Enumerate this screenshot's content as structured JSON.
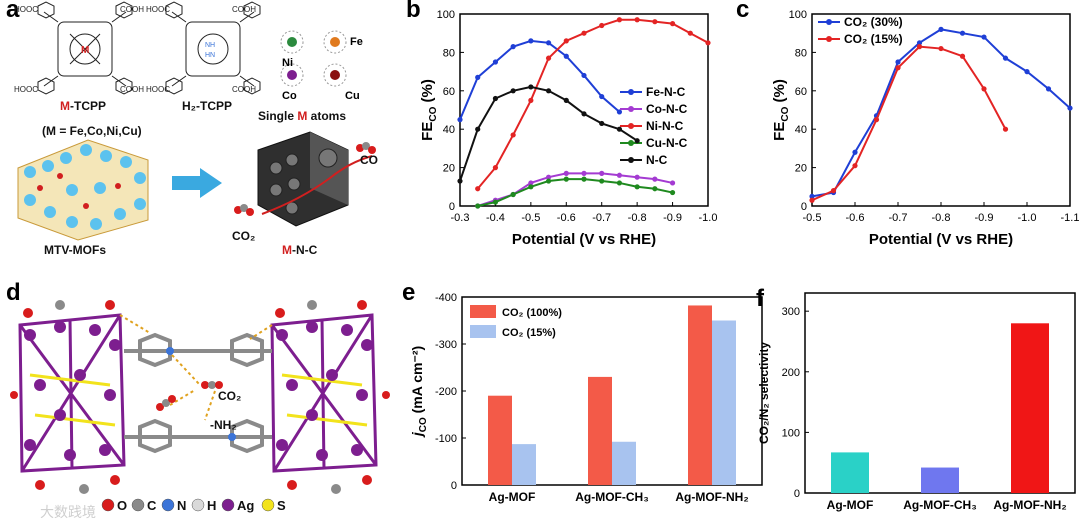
{
  "panels": {
    "a": {
      "label": "a",
      "m_tcpp_prefix": "M",
      "m_tcpp_suffix": "-TCPP",
      "h2_tcpp": "H₂-TCPP",
      "cooh": "COOH",
      "hooc": "HOOC",
      "metal_center": "M",
      "nh": "NH",
      "hn": "HN",
      "m_list": "(M = Fe,Co,Ni,Cu)",
      "single_atoms_pre": "Single ",
      "single_atoms_m": "M",
      "single_atoms_post": " atoms",
      "metals": [
        "Ni",
        "Fe",
        "Co",
        "Cu"
      ],
      "mtv_mofs": "MTV-MOFs",
      "co": "CO",
      "co2": "CO₂",
      "mnc_m": "M",
      "mnc_rest": "-N-C",
      "colors": {
        "red": "#d11f1f",
        "arrow": "#3aa9e0"
      }
    },
    "d": {
      "label": "d",
      "co2": "CO₂",
      "nh2": "-NH₂",
      "legend": [
        {
          "symbol": "O",
          "color": "#d81c1c"
        },
        {
          "symbol": "C",
          "color": "#8a8a8a"
        },
        {
          "symbol": "N",
          "color": "#3b74d8"
        },
        {
          "symbol": "H",
          "color": "#d9d9d9"
        },
        {
          "symbol": "Ag",
          "color": "#7d1e8f"
        },
        {
          "symbol": "S",
          "color": "#f2e31c"
        }
      ],
      "watermark": "大数践境"
    }
  },
  "chart_data": [
    {
      "id": "b",
      "type": "line",
      "label": "b",
      "title": "",
      "xlabel": "Potential (V vs RHE)",
      "ylabel_main": "FE",
      "ylabel_sub": "CO",
      "ylabel_unit": "(%)",
      "xlim": [
        -0.3,
        -1.0
      ],
      "ylim": [
        0,
        100
      ],
      "xticks": [
        -0.3,
        -0.4,
        -0.5,
        -0.6,
        -0.7,
        -0.8,
        -0.9,
        -1.0
      ],
      "xtick_labels": [
        "-0.3",
        "-0.4",
        "-0.5",
        "-0.6",
        "-0.7",
        "-0.8",
        "-0.9",
        "-1.0"
      ],
      "yticks": [
        0,
        20,
        40,
        60,
        80,
        100
      ],
      "legend_position": "right",
      "series": [
        {
          "name": "Fe-N-C",
          "color": "#1f3fd6",
          "x": [
            -0.3,
            -0.35,
            -0.4,
            -0.45,
            -0.5,
            -0.55,
            -0.6,
            -0.65,
            -0.7,
            -0.75
          ],
          "y": [
            45,
            67,
            75,
            83,
            86,
            85,
            78,
            68,
            57,
            49
          ]
        },
        {
          "name": "Co-N-C",
          "color": "#a43bd2",
          "x": [
            -0.35,
            -0.4,
            -0.45,
            -0.5,
            -0.55,
            -0.6,
            -0.65,
            -0.7,
            -0.75,
            -0.8,
            -0.85,
            -0.9
          ],
          "y": [
            0,
            3,
            6,
            12,
            15,
            17,
            17,
            17,
            16,
            15,
            14,
            12
          ]
        },
        {
          "name": "Ni-N-C",
          "color": "#e32424",
          "x": [
            -0.35,
            -0.4,
            -0.45,
            -0.5,
            -0.55,
            -0.6,
            -0.65,
            -0.7,
            -0.75,
            -0.8,
            -0.85,
            -0.9,
            -0.95,
            -1.0
          ],
          "y": [
            9,
            20,
            37,
            55,
            77,
            86,
            90,
            94,
            97,
            97,
            96,
            95,
            90,
            85
          ]
        },
        {
          "name": "Cu-N-C",
          "color": "#1f8a1f",
          "x": [
            -0.35,
            -0.4,
            -0.45,
            -0.5,
            -0.55,
            -0.6,
            -0.65,
            -0.7,
            -0.75,
            -0.8,
            -0.85,
            -0.9
          ],
          "y": [
            0,
            2,
            6,
            10,
            13,
            14,
            14,
            13,
            12,
            10,
            9,
            7
          ]
        },
        {
          "name": "N-C",
          "color": "#111111",
          "x": [
            -0.3,
            -0.35,
            -0.4,
            -0.45,
            -0.5,
            -0.55,
            -0.6,
            -0.65,
            -0.7,
            -0.75,
            -0.8
          ],
          "y": [
            13,
            40,
            56,
            60,
            62,
            60,
            55,
            48,
            43,
            40,
            34
          ]
        }
      ]
    },
    {
      "id": "c",
      "type": "line",
      "label": "c",
      "title": "",
      "xlabel": "Potential (V vs RHE)",
      "ylabel_main": "FE",
      "ylabel_sub": "CO",
      "ylabel_unit": "(%)",
      "xlim": [
        -0.5,
        -1.1
      ],
      "ylim": [
        0,
        100
      ],
      "xticks": [
        -0.5,
        -0.6,
        -0.7,
        -0.8,
        -0.9,
        -1.0,
        -1.1
      ],
      "xtick_labels": [
        "-0.5",
        "-0.6",
        "-0.7",
        "-0.8",
        "-0.9",
        "-1.0",
        "-1.1"
      ],
      "yticks": [
        0,
        20,
        40,
        60,
        80,
        100
      ],
      "legend_position": "top-left",
      "series": [
        {
          "name": "CO₂ (30%)",
          "color": "#1f3fd6",
          "x": [
            -0.5,
            -0.55,
            -0.6,
            -0.65,
            -0.7,
            -0.75,
            -0.8,
            -0.85,
            -0.9,
            -0.95,
            -1.0,
            -1.05,
            -1.1
          ],
          "y": [
            5,
            7,
            28,
            47,
            75,
            85,
            92,
            90,
            88,
            77,
            70,
            61,
            51
          ]
        },
        {
          "name": "CO₂ (15%)",
          "color": "#e32424",
          "x": [
            -0.5,
            -0.55,
            -0.6,
            -0.65,
            -0.7,
            -0.75,
            -0.8,
            -0.85,
            -0.9,
            -0.95
          ],
          "y": [
            3,
            8,
            21,
            45,
            72,
            83,
            82,
            78,
            61,
            40
          ]
        }
      ]
    },
    {
      "id": "e",
      "type": "bar",
      "label": "e",
      "title": "",
      "xlabel": "",
      "ylabel_main": "j",
      "ylabel_sub": "CO",
      "ylabel_unit": "(mA cm⁻²)",
      "ylim": [
        0,
        -400
      ],
      "yticks": [
        0,
        -100,
        -200,
        -300,
        -400
      ],
      "ytick_labels": [
        "0",
        "-100",
        "-200",
        "-300",
        "-400"
      ],
      "categories": [
        "Ag-MOF",
        "Ag-MOF-CH₃",
        "Ag-MOF-NH₂"
      ],
      "legend_position": "top-left",
      "series": [
        {
          "name": "CO₂ (100%)",
          "color": "#f35a48",
          "values": [
            -190,
            -230,
            -382
          ]
        },
        {
          "name": "CO₂ (15%)",
          "color": "#a8c3ef",
          "values": [
            -87,
            -92,
            -350
          ]
        }
      ]
    },
    {
      "id": "f",
      "type": "bar",
      "label": "f",
      "title": "",
      "xlabel": "",
      "ylabel": "CO₂/N₂ selectivity",
      "ylim": [
        0,
        330
      ],
      "yticks": [
        0,
        100,
        200,
        300
      ],
      "categories": [
        "Ag-MOF",
        "Ag-MOF-CH₃",
        "Ag-MOF-NH₂"
      ],
      "series": [
        {
          "name": "selectivity",
          "values": [
            67,
            42,
            280
          ]
        }
      ],
      "bar_colors": [
        "#2ad1c7",
        "#6f77ef",
        "#f01616"
      ]
    }
  ]
}
